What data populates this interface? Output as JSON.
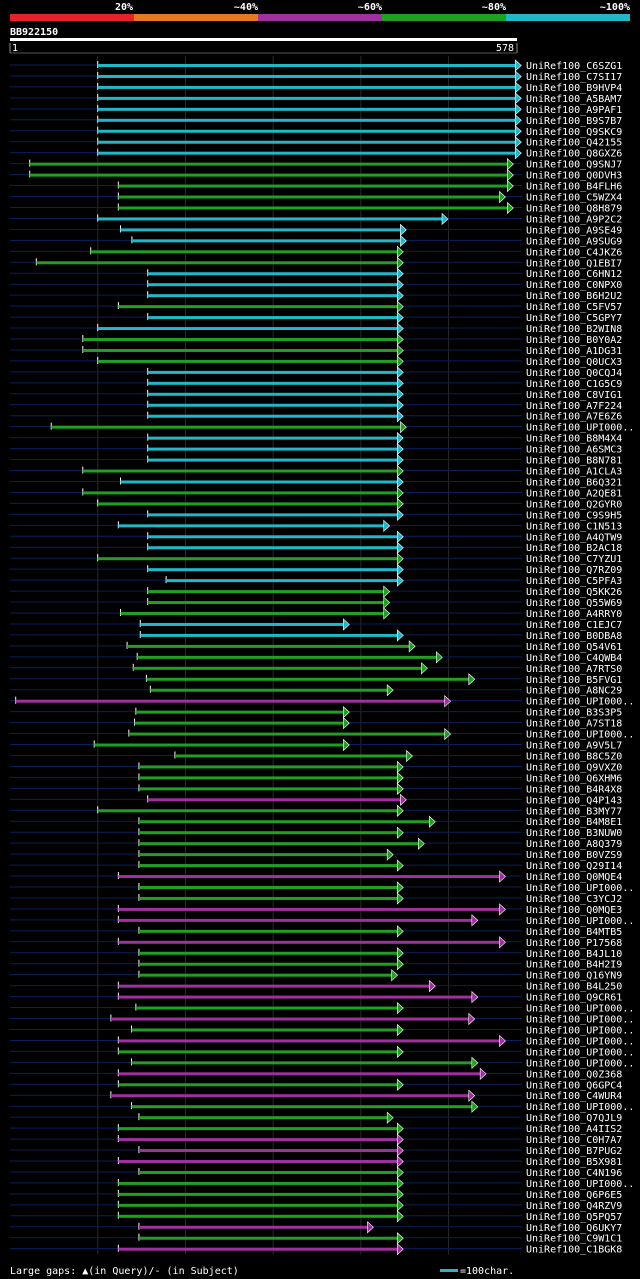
{
  "identity_scale": {
    "labels": [
      "20%",
      "~40%",
      "~60%",
      "~80%",
      "~100%"
    ],
    "colors": [
      "#e8202a",
      "#e87820",
      "#a030a0",
      "#20a020",
      "#20b8c8"
    ]
  },
  "query": {
    "name": "BB922150",
    "start": "1",
    "end": "578"
  },
  "footer": {
    "gaps_text": "Large gaps: ▲(in Query)/- (in Subject)",
    "scale_text": "=100char."
  },
  "chart_data": {
    "type": "blast_alignment_overview",
    "query_length": 578,
    "x_range": [
      1,
      578
    ],
    "grid_every": 100,
    "hits": [
      {
        "name": "UniRef100_C6SZG1",
        "start": 201,
        "end": 1152,
        "identity": "~100%"
      },
      {
        "name": "UniRef100_C7SI17",
        "start": 201,
        "end": 1152,
        "identity": "~100%"
      },
      {
        "name": "UniRef100_B9HVP4",
        "start": 201,
        "end": 1152,
        "identity": "~100%"
      },
      {
        "name": "UniRef100_A5BAM7",
        "start": 201,
        "end": 1152,
        "identity": "~100%"
      },
      {
        "name": "UniRef100_A9PAF1",
        "start": 201,
        "end": 1152,
        "identity": "~100%"
      },
      {
        "name": "UniRef100_B9S7B7",
        "start": 201,
        "end": 1152,
        "identity": "~100%"
      },
      {
        "name": "UniRef100_Q9SKC9",
        "start": 201,
        "end": 1152,
        "identity": "~100%"
      },
      {
        "name": "UniRef100_Q42155",
        "start": 201,
        "end": 1152,
        "identity": "~100%"
      },
      {
        "name": "UniRef100_Q8GXZ6",
        "start": 201,
        "end": 1152,
        "identity": "~100%"
      },
      {
        "name": "UniRef100_Q9SNJ7",
        "start": 46,
        "end": 1134,
        "identity": "~80%"
      },
      {
        "name": "UniRef100_Q0DVH3",
        "start": 46,
        "end": 1134,
        "identity": "~80%"
      },
      {
        "name": "UniRef100_B4FLH6",
        "start": 248,
        "end": 1134,
        "identity": "~80%"
      },
      {
        "name": "UniRef100_C5WZX4",
        "start": 248,
        "end": 1116,
        "identity": "~80%"
      },
      {
        "name": "UniRef100_Q8H879",
        "start": 248,
        "end": 1134,
        "identity": "~80%"
      },
      {
        "name": "UniRef100_A9P2C2",
        "start": 201,
        "end": 985,
        "identity": "~100%"
      },
      {
        "name": "UniRef100_A9SE49",
        "start": 253,
        "end": 890,
        "identity": "~100%"
      },
      {
        "name": "UniRef100_A9SUG9",
        "start": 279,
        "end": 890,
        "identity": "~100%"
      },
      {
        "name": "UniRef100_C4JKZ6",
        "start": 185,
        "end": 883,
        "identity": "~80%"
      },
      {
        "name": "UniRef100_Q1EBI7",
        "start": 61,
        "end": 883,
        "identity": "~80%"
      },
      {
        "name": "UniRef100_C6HN12",
        "start": 315,
        "end": 883,
        "identity": "~100%"
      },
      {
        "name": "UniRef100_C0NPX0",
        "start": 315,
        "end": 883,
        "identity": "~100%"
      },
      {
        "name": "UniRef100_B6H2U2",
        "start": 315,
        "end": 883,
        "identity": "~100%"
      },
      {
        "name": "UniRef100_C5FV57",
        "start": 248,
        "end": 883,
        "identity": "~80%"
      },
      {
        "name": "UniRef100_C5GPY7",
        "start": 315,
        "end": 883,
        "identity": "~100%"
      },
      {
        "name": "UniRef100_B2WIN8",
        "start": 201,
        "end": 883,
        "identity": "~100%"
      },
      {
        "name": "UniRef100_B0Y0A2",
        "start": 167,
        "end": 883,
        "identity": "~80%"
      },
      {
        "name": "UniRef100_A1DG31",
        "start": 167,
        "end": 883,
        "identity": "~80%"
      },
      {
        "name": "UniRef100_Q0UCX3",
        "start": 201,
        "end": 883,
        "identity": "~80%"
      },
      {
        "name": "UniRef100_Q0CQJ4",
        "start": 315,
        "end": 883,
        "identity": "~100%"
      },
      {
        "name": "UniRef100_C1G5C9",
        "start": 315,
        "end": 883,
        "identity": "~100%"
      },
      {
        "name": "UniRef100_C8VIG1",
        "start": 315,
        "end": 883,
        "identity": "~100%"
      },
      {
        "name": "UniRef100_A7F224",
        "start": 315,
        "end": 883,
        "identity": "~100%"
      },
      {
        "name": "UniRef100_A7E6Z6",
        "start": 315,
        "end": 883,
        "identity": "~100%"
      },
      {
        "name": "UniRef100_UPI000..",
        "start": 95,
        "end": 890,
        "identity": "~80%"
      },
      {
        "name": "UniRef100_B8M4X4",
        "start": 315,
        "end": 883,
        "identity": "~100%"
      },
      {
        "name": "UniRef100_A6SMC3",
        "start": 315,
        "end": 883,
        "identity": "~100%"
      },
      {
        "name": "UniRef100_B8N781",
        "start": 315,
        "end": 883,
        "identity": "~100%"
      },
      {
        "name": "UniRef100_A1CLA3",
        "start": 167,
        "end": 883,
        "identity": "~80%"
      },
      {
        "name": "UniRef100_B6Q321",
        "start": 253,
        "end": 883,
        "identity": "~100%"
      },
      {
        "name": "UniRef100_A2QE81",
        "start": 167,
        "end": 883,
        "identity": "~80%"
      },
      {
        "name": "UniRef100_Q2GYR0",
        "start": 201,
        "end": 883,
        "identity": "~80%"
      },
      {
        "name": "UniRef100_C9S9H5",
        "start": 315,
        "end": 883,
        "identity": "~100%"
      },
      {
        "name": "UniRef100_C1N513",
        "start": 248,
        "end": 852,
        "identity": "~100%"
      },
      {
        "name": "UniRef100_A4QTW9",
        "start": 315,
        "end": 883,
        "identity": "~100%"
      },
      {
        "name": "UniRef100_B2AC18",
        "start": 315,
        "end": 883,
        "identity": "~100%"
      },
      {
        "name": "UniRef100_C7YZU1",
        "start": 201,
        "end": 883,
        "identity": "~80%"
      },
      {
        "name": "UniRef100_Q7RZ09",
        "start": 315,
        "end": 883,
        "identity": "~100%"
      },
      {
        "name": "UniRef100_C5PFA3",
        "start": 357,
        "end": 883,
        "identity": "~100%"
      },
      {
        "name": "UniRef100_Q5KK26",
        "start": 315,
        "end": 852,
        "identity": "~80%"
      },
      {
        "name": "UniRef100_Q55W69",
        "start": 315,
        "end": 852,
        "identity": "~80%"
      },
      {
        "name": "UniRef100_A4RRY0",
        "start": 253,
        "end": 852,
        "identity": "~80%"
      },
      {
        "name": "UniRef100_C1EJC7",
        "start": 298,
        "end": 760,
        "identity": "~100%"
      },
      {
        "name": "UniRef100_B0DBA8",
        "start": 298,
        "end": 883,
        "identity": "~100%"
      },
      {
        "name": "UniRef100_Q54V61",
        "start": 268,
        "end": 910,
        "identity": "~80%"
      },
      {
        "name": "UniRef100_C4QWB4",
        "start": 291,
        "end": 972,
        "identity": "~80%"
      },
      {
        "name": "UniRef100_A7RTS0",
        "start": 282,
        "end": 938,
        "identity": "~80%"
      },
      {
        "name": "UniRef100_B5FVG1",
        "start": 312,
        "end": 1046,
        "identity": "~80%"
      },
      {
        "name": "UniRef100_A8NC29",
        "start": 321,
        "end": 860,
        "identity": "~80%"
      },
      {
        "name": "UniRef100_UPI000..",
        "start": 14,
        "end": 991,
        "identity": "~60%"
      },
      {
        "name": "UniRef100_B3S3P5",
        "start": 288,
        "end": 760,
        "identity": "~80%"
      },
      {
        "name": "UniRef100_A7ST18",
        "start": 285,
        "end": 760,
        "identity": "~80%"
      },
      {
        "name": "UniRef100_UPI000..",
        "start": 272,
        "end": 991,
        "identity": "~80%"
      },
      {
        "name": "UniRef100_A9V5L7",
        "start": 193,
        "end": 760,
        "identity": "~80%"
      },
      {
        "name": "UniRef100_B8C5Z0",
        "start": 377,
        "end": 904,
        "identity": "~80%"
      },
      {
        "name": "UniRef100_Q9VXZ0",
        "start": 295,
        "end": 883,
        "identity": "~80%"
      },
      {
        "name": "UniRef100_Q6XHM6",
        "start": 295,
        "end": 883,
        "identity": "~80%"
      },
      {
        "name": "UniRef100_B4R4X8",
        "start": 295,
        "end": 883,
        "identity": "~80%"
      },
      {
        "name": "UniRef100_Q4P143",
        "start": 315,
        "end": 890,
        "identity": "~60%"
      },
      {
        "name": "UniRef100_B3MY77",
        "start": 201,
        "end": 883,
        "identity": "~80%"
      },
      {
        "name": "UniRef100_B4M8E1",
        "start": 295,
        "end": 956,
        "identity": "~80%"
      },
      {
        "name": "UniRef100_B3NUW0",
        "start": 295,
        "end": 883,
        "identity": "~80%"
      },
      {
        "name": "UniRef100_A8Q379",
        "start": 295,
        "end": 931,
        "identity": "~80%"
      },
      {
        "name": "UniRef100_B0VZS9",
        "start": 295,
        "end": 860,
        "identity": "~80%"
      },
      {
        "name": "UniRef100_Q29I14",
        "start": 295,
        "end": 883,
        "identity": "~80%"
      },
      {
        "name": "UniRef100_Q0MQE4",
        "start": 248,
        "end": 1116,
        "identity": "~60%"
      },
      {
        "name": "UniRef100_UPI000..",
        "start": 295,
        "end": 883,
        "identity": "~80%"
      },
      {
        "name": "UniRef100_C3YCJ2",
        "start": 295,
        "end": 883,
        "identity": "~80%"
      },
      {
        "name": "UniRef100_Q0MQE3",
        "start": 248,
        "end": 1116,
        "identity": "~60%"
      },
      {
        "name": "UniRef100_UPI000..",
        "start": 248,
        "end": 1053,
        "identity": "~60%"
      },
      {
        "name": "UniRef100_B4MTB5",
        "start": 295,
        "end": 883,
        "identity": "~80%"
      },
      {
        "name": "UniRef100_P17568",
        "start": 248,
        "end": 1116,
        "identity": "~60%"
      },
      {
        "name": "UniRef100_B4JL10",
        "start": 295,
        "end": 883,
        "identity": "~80%"
      },
      {
        "name": "UniRef100_B4H2I9",
        "start": 295,
        "end": 883,
        "identity": "~80%"
      },
      {
        "name": "UniRef100_Q16YN9",
        "start": 295,
        "end": 870,
        "identity": "~80%"
      },
      {
        "name": "UniRef100_B4L250",
        "start": 248,
        "end": 956,
        "identity": "~60%"
      },
      {
        "name": "UniRef100_Q9CR61",
        "start": 248,
        "end": 1053,
        "identity": "~60%"
      },
      {
        "name": "UniRef100_UPI000..",
        "start": 288,
        "end": 883,
        "identity": "~80%"
      },
      {
        "name": "UniRef100_UPI000..",
        "start": 231,
        "end": 1046,
        "identity": "~60%"
      },
      {
        "name": "UniRef100_UPI000..",
        "start": 278,
        "end": 883,
        "identity": "~80%"
      },
      {
        "name": "UniRef100_UPI000..",
        "start": 248,
        "end": 1116,
        "identity": "~60%"
      },
      {
        "name": "UniRef100_UPI000..",
        "start": 248,
        "end": 883,
        "identity": "~80%"
      },
      {
        "name": "UniRef100_UPI000..",
        "start": 278,
        "end": 1053,
        "identity": "~80%"
      },
      {
        "name": "UniRef100_Q0Z368",
        "start": 248,
        "end": 1072,
        "identity": "~60%"
      },
      {
        "name": "UniRef100_Q6GPC4",
        "start": 248,
        "end": 883,
        "identity": "~80%"
      },
      {
        "name": "UniRef100_C4WUR4",
        "start": 231,
        "end": 1046,
        "identity": "~60%"
      },
      {
        "name": "UniRef100_UPI000..",
        "start": 278,
        "end": 1053,
        "identity": "~80%"
      },
      {
        "name": "UniRef100_Q7QJL9",
        "start": 295,
        "end": 860,
        "identity": "~80%"
      },
      {
        "name": "UniRef100_A4IIS2",
        "start": 248,
        "end": 883,
        "identity": "~80%"
      },
      {
        "name": "UniRef100_C0H7A7",
        "start": 248,
        "end": 883,
        "identity": "~60%"
      },
      {
        "name": "UniRef100_B7PUG2",
        "start": 295,
        "end": 883,
        "identity": "~60%"
      },
      {
        "name": "UniRef100_B5X981",
        "start": 248,
        "end": 883,
        "identity": "~60%"
      },
      {
        "name": "UniRef100_C4N196",
        "start": 295,
        "end": 883,
        "identity": "~80%"
      },
      {
        "name": "UniRef100_UPI000..",
        "start": 248,
        "end": 883,
        "identity": "~80%"
      },
      {
        "name": "UniRef100_Q6P6E5",
        "start": 248,
        "end": 883,
        "identity": "~80%"
      },
      {
        "name": "UniRef100_Q4RZV9",
        "start": 248,
        "end": 883,
        "identity": "~80%"
      },
      {
        "name": "UniRef100_Q5PQ57",
        "start": 248,
        "end": 883,
        "identity": "~80%"
      },
      {
        "name": "UniRef100_Q6UKY7",
        "start": 295,
        "end": 815,
        "identity": "~60%"
      },
      {
        "name": "UniRef100_C9W1C1",
        "start": 295,
        "end": 883,
        "identity": "~80%"
      },
      {
        "name": "UniRef100_C1BGK8",
        "start": 248,
        "end": 883,
        "identity": "~60%"
      }
    ]
  }
}
